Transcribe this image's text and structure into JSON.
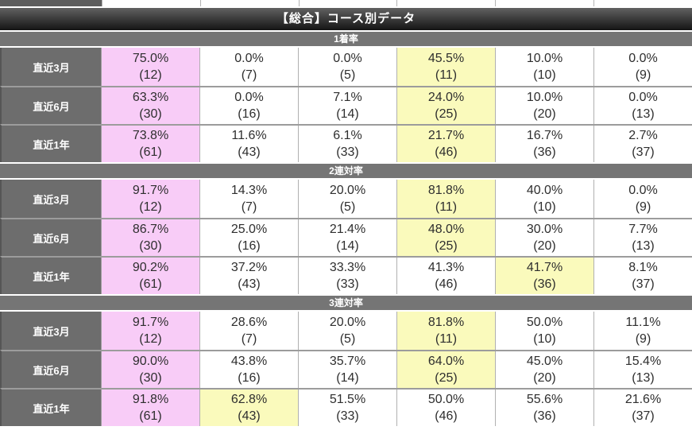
{
  "title": "【総合】コース別データ",
  "colors": {
    "pink": "#f8ccf7",
    "yellow": "#fafabc"
  },
  "sections": [
    {
      "label": "1着率",
      "rows": [
        {
          "label": "直近3月",
          "cells": [
            {
              "pct": "75.0%",
              "count": "(12)",
              "hl": "pink"
            },
            {
              "pct": "0.0%",
              "count": "(7)",
              "hl": ""
            },
            {
              "pct": "0.0%",
              "count": "(5)",
              "hl": ""
            },
            {
              "pct": "45.5%",
              "count": "(11)",
              "hl": "yellow"
            },
            {
              "pct": "10.0%",
              "count": "(10)",
              "hl": ""
            },
            {
              "pct": "0.0%",
              "count": "(9)",
              "hl": ""
            }
          ]
        },
        {
          "label": "直近6月",
          "cells": [
            {
              "pct": "63.3%",
              "count": "(30)",
              "hl": "pink"
            },
            {
              "pct": "0.0%",
              "count": "(16)",
              "hl": ""
            },
            {
              "pct": "7.1%",
              "count": "(14)",
              "hl": ""
            },
            {
              "pct": "24.0%",
              "count": "(25)",
              "hl": "yellow"
            },
            {
              "pct": "10.0%",
              "count": "(20)",
              "hl": ""
            },
            {
              "pct": "0.0%",
              "count": "(13)",
              "hl": ""
            }
          ]
        },
        {
          "label": "直近1年",
          "cells": [
            {
              "pct": "73.8%",
              "count": "(61)",
              "hl": "pink"
            },
            {
              "pct": "11.6%",
              "count": "(43)",
              "hl": ""
            },
            {
              "pct": "6.1%",
              "count": "(33)",
              "hl": ""
            },
            {
              "pct": "21.7%",
              "count": "(46)",
              "hl": "yellow"
            },
            {
              "pct": "16.7%",
              "count": "(36)",
              "hl": ""
            },
            {
              "pct": "2.7%",
              "count": "(37)",
              "hl": ""
            }
          ]
        }
      ]
    },
    {
      "label": "2連対率",
      "rows": [
        {
          "label": "直近3月",
          "cells": [
            {
              "pct": "91.7%",
              "count": "(12)",
              "hl": "pink"
            },
            {
              "pct": "14.3%",
              "count": "(7)",
              "hl": ""
            },
            {
              "pct": "20.0%",
              "count": "(5)",
              "hl": ""
            },
            {
              "pct": "81.8%",
              "count": "(11)",
              "hl": "yellow"
            },
            {
              "pct": "40.0%",
              "count": "(10)",
              "hl": ""
            },
            {
              "pct": "0.0%",
              "count": "(9)",
              "hl": ""
            }
          ]
        },
        {
          "label": "直近6月",
          "cells": [
            {
              "pct": "86.7%",
              "count": "(30)",
              "hl": "pink"
            },
            {
              "pct": "25.0%",
              "count": "(16)",
              "hl": ""
            },
            {
              "pct": "21.4%",
              "count": "(14)",
              "hl": ""
            },
            {
              "pct": "48.0%",
              "count": "(25)",
              "hl": "yellow"
            },
            {
              "pct": "30.0%",
              "count": "(20)",
              "hl": ""
            },
            {
              "pct": "7.7%",
              "count": "(13)",
              "hl": ""
            }
          ]
        },
        {
          "label": "直近1年",
          "cells": [
            {
              "pct": "90.2%",
              "count": "(61)",
              "hl": "pink"
            },
            {
              "pct": "37.2%",
              "count": "(43)",
              "hl": ""
            },
            {
              "pct": "33.3%",
              "count": "(33)",
              "hl": ""
            },
            {
              "pct": "41.3%",
              "count": "(46)",
              "hl": ""
            },
            {
              "pct": "41.7%",
              "count": "(36)",
              "hl": "yellow"
            },
            {
              "pct": "8.1%",
              "count": "(37)",
              "hl": ""
            }
          ]
        }
      ]
    },
    {
      "label": "3連対率",
      "rows": [
        {
          "label": "直近3月",
          "cells": [
            {
              "pct": "91.7%",
              "count": "(12)",
              "hl": "pink"
            },
            {
              "pct": "28.6%",
              "count": "(7)",
              "hl": ""
            },
            {
              "pct": "20.0%",
              "count": "(5)",
              "hl": ""
            },
            {
              "pct": "81.8%",
              "count": "(11)",
              "hl": "yellow"
            },
            {
              "pct": "50.0%",
              "count": "(10)",
              "hl": ""
            },
            {
              "pct": "11.1%",
              "count": "(9)",
              "hl": ""
            }
          ]
        },
        {
          "label": "直近6月",
          "cells": [
            {
              "pct": "90.0%",
              "count": "(30)",
              "hl": "pink"
            },
            {
              "pct": "43.8%",
              "count": "(16)",
              "hl": ""
            },
            {
              "pct": "35.7%",
              "count": "(14)",
              "hl": ""
            },
            {
              "pct": "64.0%",
              "count": "(25)",
              "hl": "yellow"
            },
            {
              "pct": "45.0%",
              "count": "(20)",
              "hl": ""
            },
            {
              "pct": "15.4%",
              "count": "(13)",
              "hl": ""
            }
          ]
        },
        {
          "label": "直近1年",
          "cells": [
            {
              "pct": "91.8%",
              "count": "(61)",
              "hl": "pink"
            },
            {
              "pct": "62.8%",
              "count": "(43)",
              "hl": "yellow"
            },
            {
              "pct": "51.5%",
              "count": "(33)",
              "hl": ""
            },
            {
              "pct": "50.0%",
              "count": "(46)",
              "hl": ""
            },
            {
              "pct": "55.6%",
              "count": "(36)",
              "hl": ""
            },
            {
              "pct": "21.6%",
              "count": "(37)",
              "hl": ""
            }
          ]
        }
      ]
    }
  ]
}
